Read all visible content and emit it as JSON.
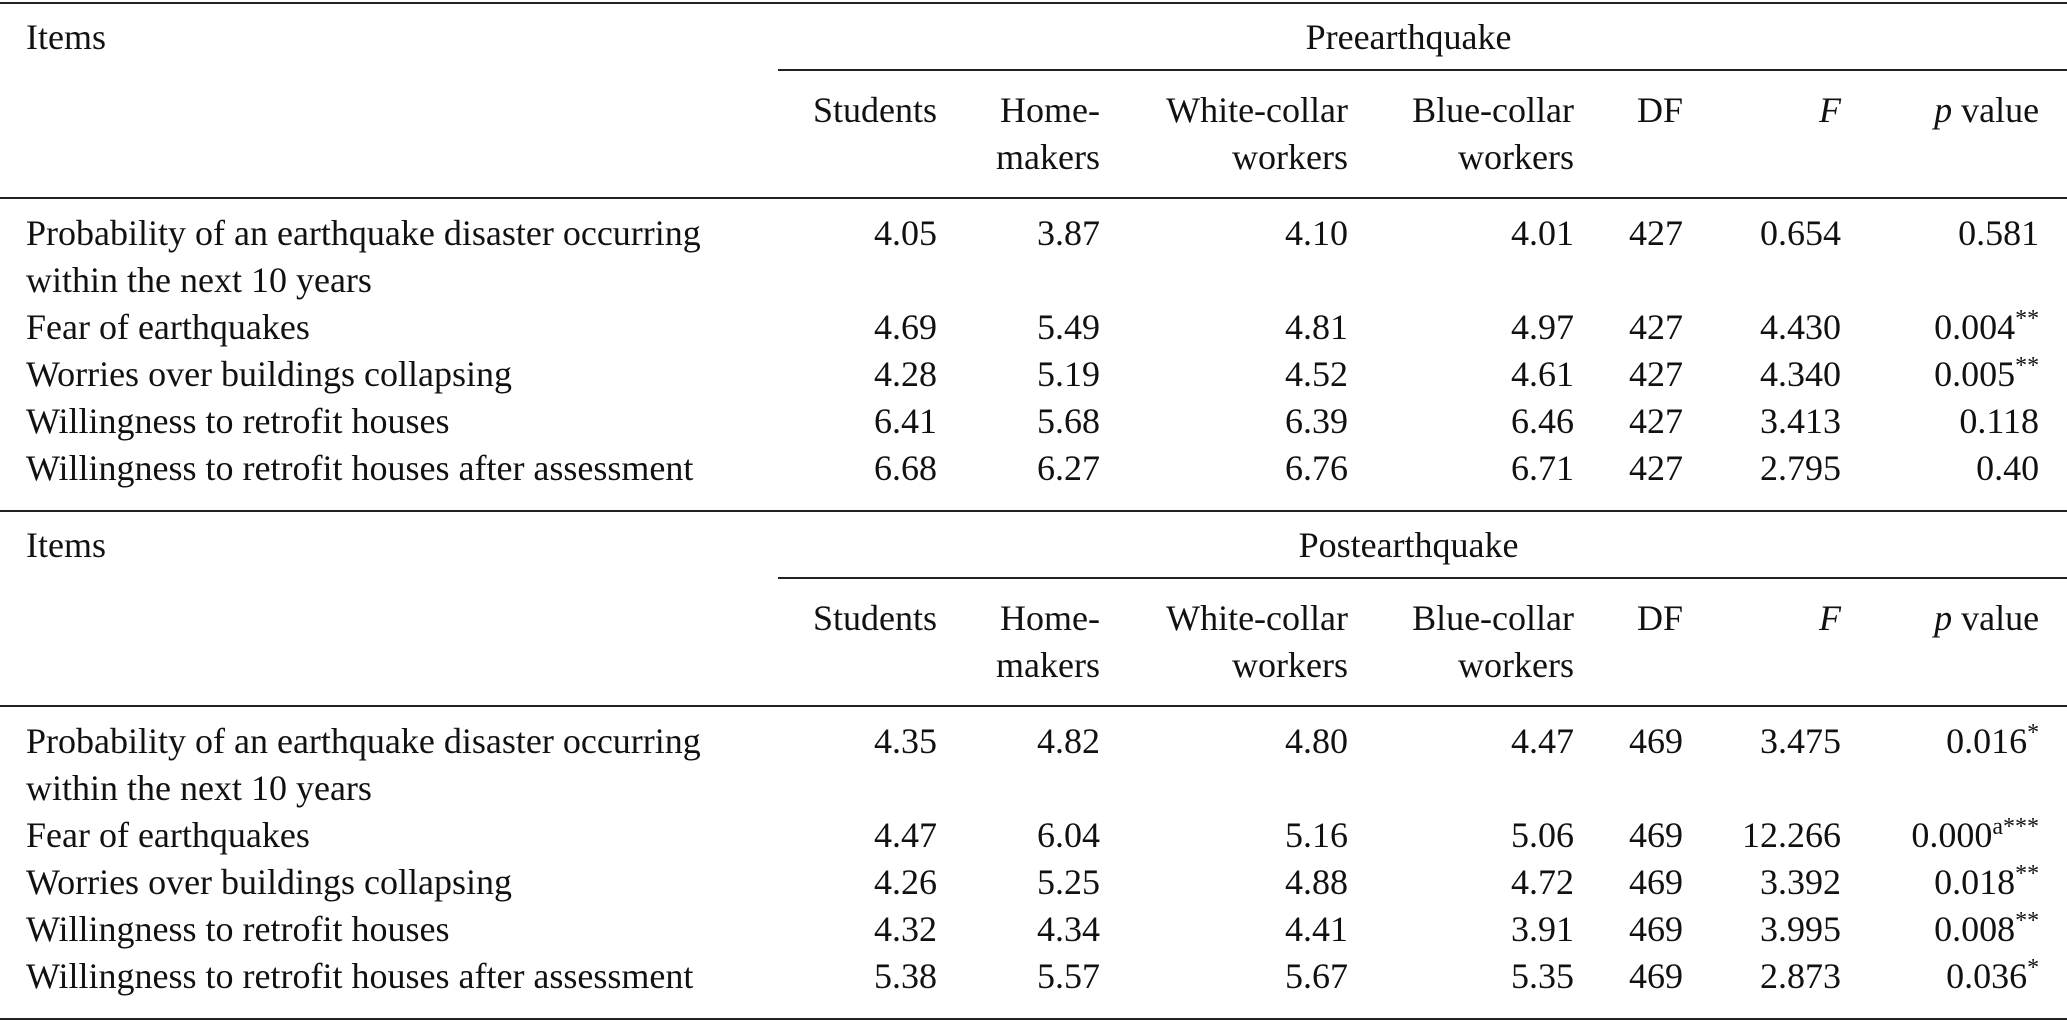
{
  "sections": [
    {
      "items_header": "Items",
      "group": "Preearthquake",
      "columns": [
        [
          "Students"
        ],
        [
          "Home-",
          "makers"
        ],
        [
          "White-collar",
          "workers"
        ],
        [
          "Blue-collar",
          "workers"
        ],
        [
          "DF"
        ],
        [
          "F"
        ]
      ],
      "p_header": {
        "italic": "p",
        "text": "value"
      },
      "rows": [
        {
          "item": "Probability of an earthquake disaster occurring within the next 10 years",
          "values": [
            "4.05",
            "3.87",
            "4.10",
            "4.01",
            "427",
            "0.654"
          ],
          "p": {
            "value": "0.581"
          }
        },
        {
          "item": "Fear of earthquakes",
          "values": [
            "4.69",
            "5.49",
            "4.81",
            "4.97",
            "427",
            "4.430"
          ],
          "p": {
            "value": "0.004",
            "sup": "**"
          }
        },
        {
          "item": "Worries over buildings collapsing",
          "values": [
            "4.28",
            "5.19",
            "4.52",
            "4.61",
            "427",
            "4.340"
          ],
          "p": {
            "value": "0.005",
            "sup": "**"
          }
        },
        {
          "item": "Willingness to retrofit houses",
          "values": [
            "6.41",
            "5.68",
            "6.39",
            "6.46",
            "427",
            "3.413"
          ],
          "p": {
            "value": "0.118"
          }
        },
        {
          "item": "Willingness to retrofit houses after assessment",
          "values": [
            "6.68",
            "6.27",
            "6.76",
            "6.71",
            "427",
            "2.795"
          ],
          "p": {
            "value": "0.40"
          }
        }
      ]
    },
    {
      "items_header": "Items",
      "group": "Postearthquake",
      "columns": [
        [
          "Students"
        ],
        [
          "Home-",
          "makers"
        ],
        [
          "White-collar",
          "workers"
        ],
        [
          "Blue-collar",
          "workers"
        ],
        [
          "DF"
        ],
        [
          "F"
        ]
      ],
      "p_header": {
        "italic": "p",
        "text": "value"
      },
      "rows": [
        {
          "item": "Probability of an earthquake disaster occurring within the next 10 years",
          "values": [
            "4.35",
            "4.82",
            "4.80",
            "4.47",
            "469",
            "3.475"
          ],
          "p": {
            "value": "0.016",
            "sup": "*"
          }
        },
        {
          "item": "Fear of earthquakes",
          "values": [
            "4.47",
            "6.04",
            "5.16",
            "5.06",
            "469",
            "12.266"
          ],
          "p": {
            "value": "0.000",
            "sup": "a***"
          }
        },
        {
          "item": "Worries over buildings collapsing",
          "values": [
            "4.26",
            "5.25",
            "4.88",
            "4.72",
            "469",
            "3.392"
          ],
          "p": {
            "value": "0.018",
            "sup": "**"
          }
        },
        {
          "item": "Willingness to retrofit houses",
          "values": [
            "4.32",
            "4.34",
            "4.41",
            "3.91",
            "469",
            "3.995"
          ],
          "p": {
            "value": "0.008",
            "sup": "**"
          }
        },
        {
          "item": "Willingness to retrofit houses after assessment",
          "values": [
            "5.38",
            "5.57",
            "5.67",
            "5.35",
            "469",
            "2.873"
          ],
          "p": {
            "value": "0.036",
            "sup": "*"
          }
        }
      ]
    }
  ]
}
